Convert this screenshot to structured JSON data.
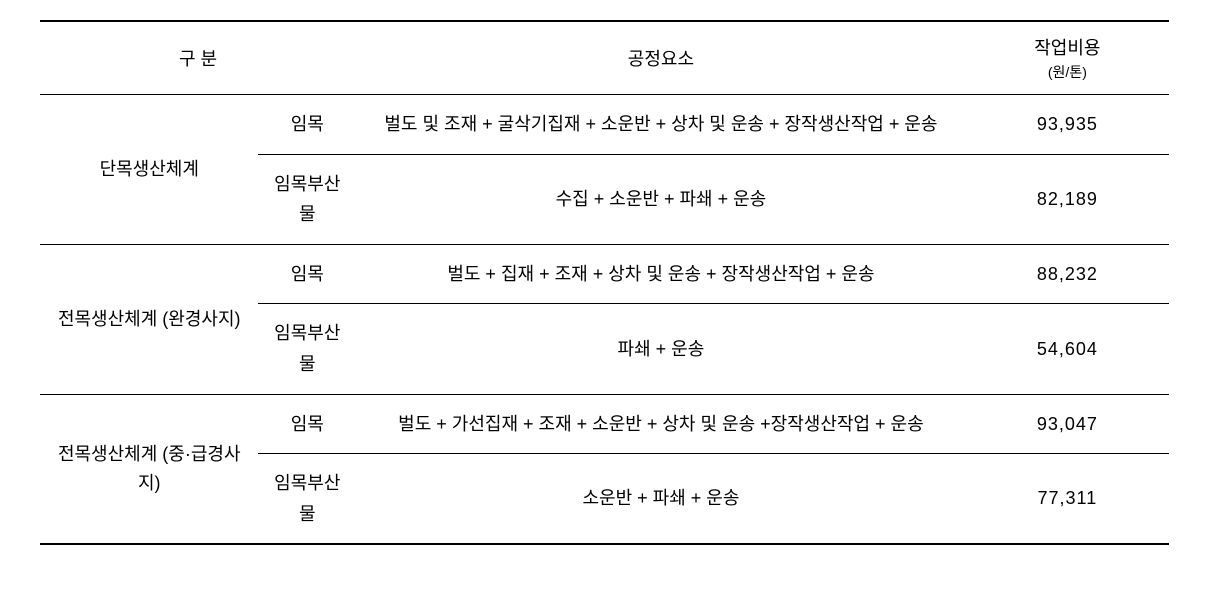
{
  "table": {
    "headers": {
      "category": "구    분",
      "process": "공정요소",
      "cost": "작업비용",
      "cost_unit": "(원/톤)"
    },
    "groups": [
      {
        "main_label": "단목생산체계",
        "rows": [
          {
            "sub_label": "임목",
            "process": "벌도 및 조재 + 굴삭기집재 + 소운반 + 상차 및 운송 + 장작생산작업 + 운송",
            "cost": "93,935"
          },
          {
            "sub_label": "임목부산물",
            "process": "수집 + 소운반 + 파쇄 + 운송",
            "cost": "82,189"
          }
        ]
      },
      {
        "main_label": "전목생산체계 (완경사지)",
        "rows": [
          {
            "sub_label": "임목",
            "process": "벌도 + 집재 + 조재 + 상차 및 운송 + 장작생산작업 + 운송",
            "cost": "88,232"
          },
          {
            "sub_label": "임목부산물",
            "process": "파쇄 + 운송",
            "cost": "54,604"
          }
        ]
      },
      {
        "main_label": "전목생산체계 (중·급경사지)",
        "rows": [
          {
            "sub_label": "임목",
            "process": "벌도 + 가선집재 + 조재 + 소운반 + 상차 및 운송 +장작생산작업 + 운송",
            "cost": "93,047"
          },
          {
            "sub_label": "임목부산물",
            "process": "소운반 + 파쇄 + 운송",
            "cost": "77,311"
          }
        ]
      }
    ],
    "styling": {
      "border_color": "#000000",
      "background_color": "#ffffff",
      "text_color": "#000000",
      "header_fontsize": 18,
      "body_fontsize": 18,
      "unit_fontsize": 14,
      "line_height": 1.7,
      "outer_border_width": 2,
      "group_border_width": 1.5,
      "row_border_width": 1
    }
  }
}
